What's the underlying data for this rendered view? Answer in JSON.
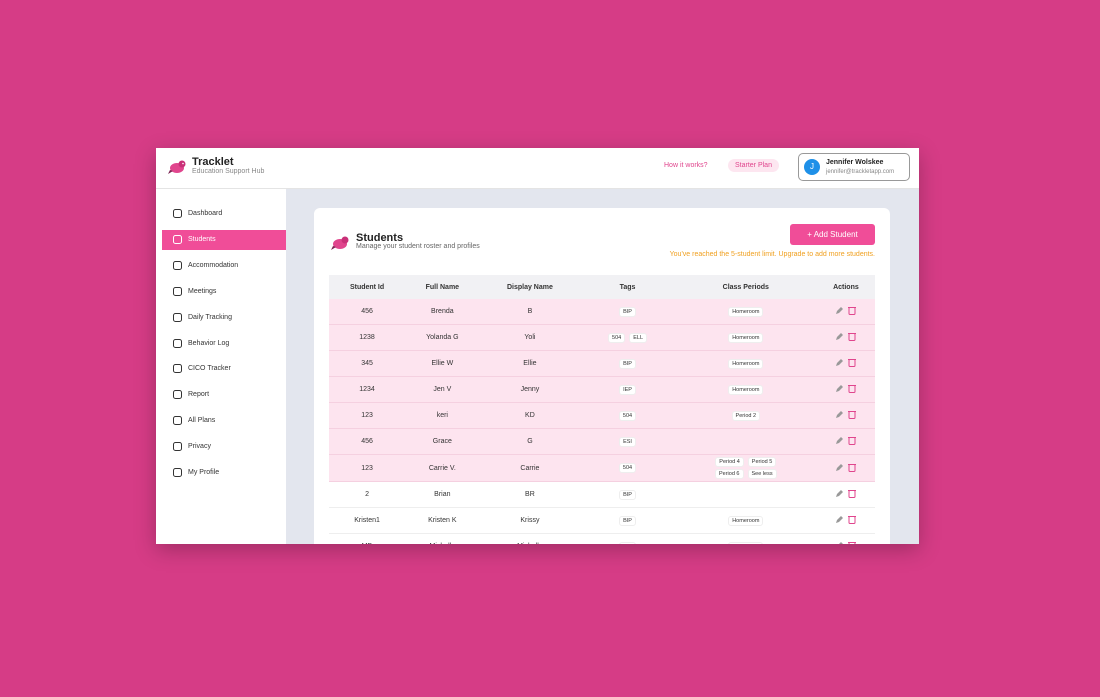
{
  "header": {
    "title": "Tracklet",
    "subtitle": "Education Support Hub",
    "links": [
      "How it works?",
      "Starter Plan"
    ],
    "user": {
      "initial": "J",
      "name": "Jennifer Wolskee",
      "email": "jennifer@trackletapp.com"
    }
  },
  "sidebar": {
    "items": [
      "Dashboard",
      "Students",
      "Accommodation",
      "Meetings",
      "Daily Tracking",
      "Behavior Log",
      "CICO Tracker",
      "Report",
      "All Plans",
      "Privacy",
      "My Profile"
    ],
    "active": "Students"
  },
  "page": {
    "title": "Students",
    "subtitle": "Manage your student roster and profiles",
    "button": "+ Add Student",
    "warning": "You've reached the 5-student limit. Upgrade to add more students."
  },
  "table": {
    "columns": [
      "Student Id",
      "Full Name",
      "Display Name",
      "Tags",
      "Class Periods",
      "Actions"
    ],
    "rows": [
      {
        "id": "456",
        "full_name": "Brenda",
        "display_name": "B",
        "tags": [
          "BIP"
        ],
        "periods": [
          "Homeroom"
        ]
      },
      {
        "id": "1238",
        "full_name": "Yolanda G",
        "display_name": "Yoli",
        "tags": [
          "504",
          "ELL"
        ],
        "periods": [
          "Homeroom"
        ]
      },
      {
        "id": "345",
        "full_name": "Ellie W",
        "display_name": "Ellie",
        "tags": [
          "BIP"
        ],
        "periods": [
          "Homeroom"
        ]
      },
      {
        "id": "1234",
        "full_name": "Jen V",
        "display_name": "Jenny",
        "tags": [
          "IEP"
        ],
        "periods": [
          "Homeroom"
        ]
      },
      {
        "id": "123",
        "full_name": "keri",
        "display_name": "KD",
        "tags": [
          "504"
        ],
        "periods": [
          "Period 2"
        ]
      },
      {
        "id": "456",
        "full_name": "Grace",
        "display_name": "G",
        "tags": [
          "ESI"
        ],
        "periods": []
      },
      {
        "id": "123",
        "full_name": "Carrie V.",
        "display_name": "Carrie",
        "tags": [
          "504"
        ],
        "periods": [
          "Period 4",
          "Period 5",
          "Period 6",
          "See less"
        ]
      },
      {
        "id": "2",
        "full_name": "Brian",
        "display_name": "BR",
        "tags": [
          "BIP"
        ],
        "periods": []
      },
      {
        "id": "Kristen1",
        "full_name": "Kristen K",
        "display_name": "Krissy",
        "tags": [
          "BIP"
        ],
        "periods": [
          "Homeroom"
        ]
      },
      {
        "id": "MD",
        "full_name": "Michelle",
        "display_name": "Michelle",
        "tags": [
          "IEP"
        ],
        "periods": [
          "Homeroom"
        ]
      }
    ]
  }
}
